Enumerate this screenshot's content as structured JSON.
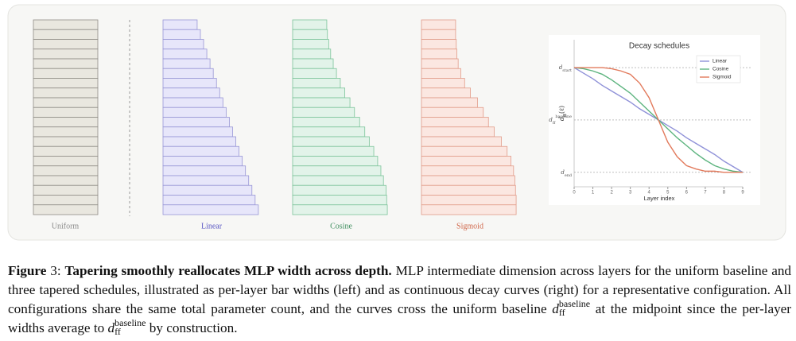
{
  "bar_panels": [
    {
      "label": "Uniform",
      "fill": "#e9e7df",
      "stroke": "#8f8d86",
      "label_color": "#8a8a8a",
      "values": [
        1,
        1,
        1,
        1,
        1,
        1,
        1,
        1,
        1,
        1,
        1,
        1,
        1,
        1,
        1,
        1,
        1,
        1,
        1,
        1
      ]
    },
    {
      "label": "Linear",
      "fill": "#e7e6fa",
      "stroke": "#9896d6",
      "label_color": "#5b58c4",
      "values": [
        0.53,
        0.58,
        0.63,
        0.68,
        0.73,
        0.78,
        0.83,
        0.88,
        0.93,
        0.98,
        1.03,
        1.08,
        1.13,
        1.18,
        1.23,
        1.28,
        1.33,
        1.38,
        1.43,
        1.48
      ]
    },
    {
      "label": "Cosine",
      "fill": "#e2f3e9",
      "stroke": "#7cc49a",
      "label_color": "#3f8f5f",
      "values": [
        0.53,
        0.54,
        0.56,
        0.59,
        0.63,
        0.68,
        0.74,
        0.81,
        0.89,
        0.96,
        1.04,
        1.12,
        1.19,
        1.26,
        1.32,
        1.37,
        1.41,
        1.45,
        1.46,
        1.47
      ]
    },
    {
      "label": "Sigmoid",
      "fill": "#fbe7e1",
      "stroke": "#e29c89",
      "label_color": "#d0674a",
      "values": [
        0.53,
        0.53,
        0.54,
        0.55,
        0.57,
        0.61,
        0.67,
        0.76,
        0.87,
        0.96,
        1.04,
        1.13,
        1.24,
        1.33,
        1.39,
        1.43,
        1.45,
        1.46,
        1.47,
        1.47
      ]
    }
  ],
  "chart_data": {
    "type": "line",
    "title": "Decay schedules",
    "xlabel": "Layer index",
    "ylabel": "d_ff(ℓ)",
    "x": [
      0,
      0.5,
      1,
      1.5,
      2,
      2.5,
      3,
      3.5,
      4,
      4.5,
      5,
      5.5,
      6,
      6.5,
      7,
      7.5,
      8,
      8.5,
      9
    ],
    "xlim": [
      0,
      9
    ],
    "xticks": [
      0,
      1,
      2,
      3,
      4,
      5,
      6,
      7,
      8,
      9
    ],
    "ylim": [
      0.4,
      1.72
    ],
    "yticks": [
      {
        "value": 1.47,
        "label": "d_start"
      },
      {
        "value": 1,
        "label": "d_ff^baseline"
      },
      {
        "value": 0.53,
        "label": "d_end"
      }
    ],
    "grid": true,
    "legend": "upper right",
    "series": [
      {
        "name": "Linear",
        "color": "#8f91d8",
        "values": [
          1.47,
          1.42,
          1.37,
          1.31,
          1.26,
          1.21,
          1.16,
          1.1,
          1.05,
          1,
          0.95,
          0.9,
          0.84,
          0.79,
          0.74,
          0.69,
          0.63,
          0.58,
          0.53
        ]
      },
      {
        "name": "Cosine",
        "color": "#5db47f",
        "values": [
          1.47,
          1.46,
          1.44,
          1.41,
          1.36,
          1.3,
          1.24,
          1.16,
          1.08,
          1,
          0.92,
          0.84,
          0.77,
          0.7,
          0.64,
          0.59,
          0.56,
          0.54,
          0.53
        ]
      },
      {
        "name": "Sigmoid",
        "color": "#e27a5c",
        "values": [
          1.47,
          1.47,
          1.47,
          1.47,
          1.46,
          1.44,
          1.41,
          1.33,
          1.2,
          1,
          0.8,
          0.67,
          0.59,
          0.56,
          0.54,
          0.54,
          0.53,
          0.53,
          0.53
        ]
      }
    ]
  },
  "caption": {
    "label": "Figure",
    "number": "3:",
    "title": "Tapering smoothly reallocates MLP width across depth.",
    "text1": "MLP intermediate dimension across layers for the uniform baseline and three tapered schedules, illustrated as per-layer bar widths (left) and as continuous decay curves (right) for a representative configuration. All configurations share the same total parameter count, and the curves cross the uniform baseline",
    "math1": {
      "base": "d",
      "sub": "ff",
      "sup": "baseline"
    },
    "text2": "at the midpoint since the per-layer widths average to",
    "math2": {
      "base": "d",
      "sub": "ff",
      "sup": "baseline"
    },
    "text3": "by construction."
  }
}
